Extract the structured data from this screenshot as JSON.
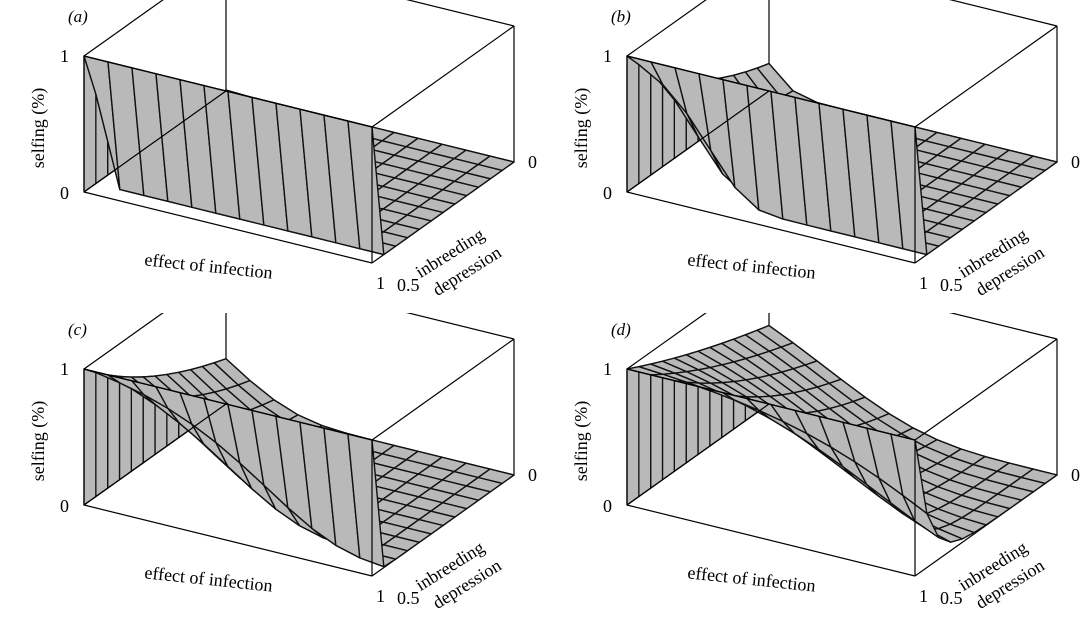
{
  "colors": {
    "surface": "#b9b9b9",
    "edge": "#111111",
    "box": "#000000",
    "background": "#ffffff"
  },
  "chart_data": [
    {
      "type": "surface",
      "panel_label": "(a)",
      "zlabel": "selfing (%)",
      "xlabel": "effect of infection",
      "ylabel_line1": "inbreeding",
      "ylabel_line2": "depression",
      "z_ticks": [
        "0",
        "1"
      ],
      "x_ticks": [
        "1"
      ],
      "y_ticks": [
        "0",
        "0.5"
      ],
      "zlim": [
        0,
        1
      ],
      "xlim": [
        0,
        1
      ],
      "ylim": [
        0,
        0.5
      ],
      "grid_n": 12,
      "surface_model": {
        "a": 5.0,
        "b": 80.0,
        "ref_y": 0.5
      }
    },
    {
      "type": "surface",
      "panel_label": "(b)",
      "zlabel": "selfing (%)",
      "xlabel": "effect of infection",
      "ylabel_line1": "inbreeding",
      "ylabel_line2": "depression",
      "z_ticks": [
        "0",
        "1"
      ],
      "x_ticks": [
        "1"
      ],
      "y_ticks": [
        "0",
        "0.5"
      ],
      "zlim": [
        0,
        1
      ],
      "xlim": [
        0,
        1
      ],
      "ylim": [
        0,
        0.5
      ],
      "grid_n": 12,
      "surface_model": {
        "a": 1.6,
        "b": 8.0,
        "ref_y": 0.5
      }
    },
    {
      "type": "surface",
      "panel_label": "(c)",
      "zlabel": "selfing (%)",
      "xlabel": "effect of infection",
      "ylabel_line1": "inbreeding",
      "ylabel_line2": "depression",
      "z_ticks": [
        "0",
        "1"
      ],
      "x_ticks": [
        "1"
      ],
      "y_ticks": [
        "0",
        "0.5"
      ],
      "zlim": [
        0,
        1
      ],
      "xlim": [
        0,
        1
      ],
      "ylim": [
        0,
        0.5
      ],
      "grid_n": 12,
      "surface_model": {
        "a": 1.1,
        "b": 4.0,
        "ref_y": 0.5
      }
    },
    {
      "type": "surface",
      "panel_label": "(d)",
      "zlabel": "selfing (%)",
      "xlabel": "effect of infection",
      "ylabel_line1": "inbreeding",
      "ylabel_line2": "depression",
      "z_ticks": [
        "0",
        "1"
      ],
      "x_ticks": [
        "1"
      ],
      "y_ticks": [
        "0",
        "0.5"
      ],
      "zlim": [
        0,
        1
      ],
      "xlim": [
        0,
        1
      ],
      "ylim": [
        0,
        0.5
      ],
      "grid_n": 12,
      "surface_model": {
        "a": 0.55,
        "b": 3.0,
        "ref_y": 0.5
      }
    }
  ]
}
